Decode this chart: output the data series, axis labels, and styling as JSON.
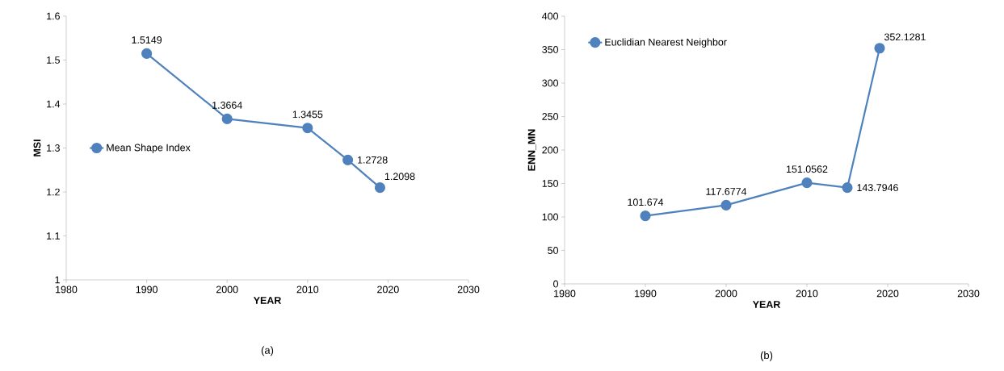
{
  "chart_data": [
    {
      "type": "line",
      "x": [
        1990,
        2000,
        2010,
        2015,
        2019
      ],
      "xlabel": "YEAR",
      "ylabel": "MSI",
      "series": [
        {
          "name": "Mean Shape Index",
          "color": "#4f81bd",
          "values": [
            1.5149,
            1.3664,
            1.3455,
            1.2728,
            1.2098
          ]
        }
      ],
      "xlim": [
        1980,
        2030
      ],
      "xticks": [
        1980,
        1990,
        2000,
        2010,
        2020,
        2030
      ],
      "ylim": [
        1,
        1.6
      ],
      "yticks": [
        1,
        1.1,
        1.2,
        1.3,
        1.4,
        1.5,
        1.6
      ],
      "marker": "circle",
      "data_labels": true,
      "legend": "left",
      "annotations": [
        "(a)"
      ]
    },
    {
      "type": "line",
      "x": [
        1990,
        2000,
        2010,
        2015,
        2019
      ],
      "xlabel": "YEAR",
      "ylabel": "ENN_MN",
      "series": [
        {
          "name": "Euclidian Nearest Neighbor",
          "color": "#4f81bd",
          "values": [
            101.674,
            117.6774,
            151.0562,
            143.7946,
            352.1281
          ]
        }
      ],
      "xlim": [
        1980,
        2030
      ],
      "xticks": [
        1980,
        1990,
        2000,
        2010,
        2020,
        2030
      ],
      "ylim": [
        0,
        400
      ],
      "yticks": [
        0,
        50,
        100,
        150,
        200,
        250,
        300,
        350,
        400
      ],
      "marker": "circle",
      "data_labels": true,
      "legend": "top left",
      "annotations": [
        "(b)"
      ]
    }
  ]
}
